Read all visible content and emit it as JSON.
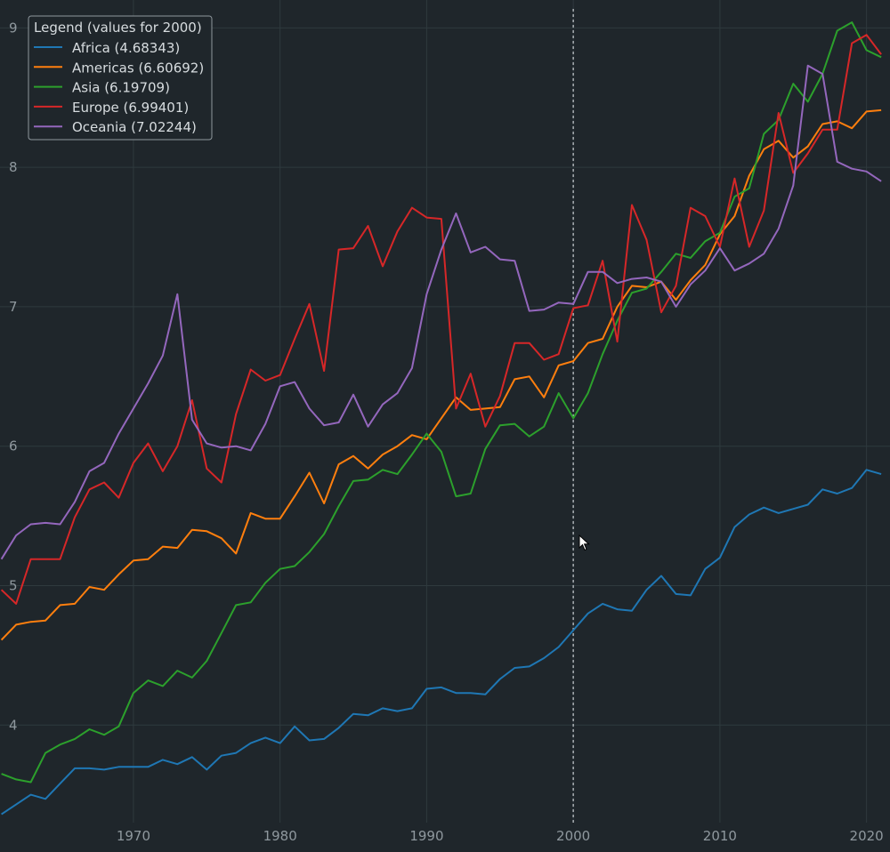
{
  "chart_data": {
    "type": "line",
    "title": "",
    "xlabel": "",
    "ylabel": "",
    "xlim": [
      1960.9,
      2021.6
    ],
    "ylim": [
      3.3,
      9.2
    ],
    "x_ticks": [
      1970,
      1980,
      1990,
      2000,
      2010,
      2020
    ],
    "y_ticks": [
      4,
      5,
      6,
      7,
      8,
      9
    ],
    "grid": true,
    "hover_x": 2000,
    "legend": {
      "title": "Legend (values for 2000)",
      "placement": "top-left"
    },
    "x": [
      1961,
      1962,
      1963,
      1964,
      1965,
      1966,
      1967,
      1968,
      1969,
      1970,
      1971,
      1972,
      1973,
      1974,
      1975,
      1976,
      1977,
      1978,
      1979,
      1980,
      1981,
      1982,
      1983,
      1984,
      1985,
      1986,
      1987,
      1988,
      1989,
      1990,
      1991,
      1992,
      1993,
      1994,
      1995,
      1996,
      1997,
      1998,
      1999,
      2000,
      2001,
      2002,
      2003,
      2004,
      2005,
      2006,
      2007,
      2008,
      2009,
      2010,
      2011,
      2012,
      2013,
      2014,
      2015,
      2016,
      2017,
      2018,
      2019,
      2020,
      2021
    ],
    "series": [
      {
        "name": "Africa",
        "legend_label": "Africa (4.68343)",
        "color": "#1f77b4",
        "values": [
          3.36,
          3.43,
          3.5,
          3.47,
          3.58,
          3.69,
          3.69,
          3.68,
          3.7,
          3.7,
          3.7,
          3.75,
          3.72,
          3.77,
          3.68,
          3.78,
          3.8,
          3.87,
          3.91,
          3.87,
          3.99,
          3.89,
          3.9,
          3.98,
          4.08,
          4.07,
          4.12,
          4.1,
          4.12,
          4.26,
          4.27,
          4.23,
          4.23,
          4.22,
          4.33,
          4.41,
          4.42,
          4.48,
          4.56,
          4.68,
          4.8,
          4.87,
          4.83,
          4.82,
          4.97,
          5.07,
          4.94,
          4.93,
          5.12,
          5.2,
          5.42,
          5.51,
          5.56,
          5.52,
          5.55,
          5.58,
          5.69,
          5.66,
          5.7,
          5.83,
          5.8
        ]
      },
      {
        "name": "Americas",
        "legend_label": "Americas (6.60692)",
        "color": "#ff7f0e",
        "values": [
          4.61,
          4.72,
          4.74,
          4.75,
          4.86,
          4.87,
          4.99,
          4.97,
          5.08,
          5.18,
          5.19,
          5.28,
          5.27,
          5.4,
          5.39,
          5.34,
          5.23,
          5.52,
          5.48,
          5.48,
          5.64,
          5.81,
          5.59,
          5.87,
          5.93,
          5.84,
          5.94,
          6.0,
          6.08,
          6.05,
          6.2,
          6.35,
          6.26,
          6.27,
          6.28,
          6.48,
          6.5,
          6.35,
          6.58,
          6.61,
          6.74,
          6.77,
          7.0,
          7.15,
          7.14,
          7.18,
          7.05,
          7.19,
          7.3,
          7.52,
          7.65,
          7.94,
          8.13,
          8.19,
          8.07,
          8.15,
          8.31,
          8.33,
          8.28,
          8.4,
          8.41
        ]
      },
      {
        "name": "Asia",
        "legend_label": "Asia (6.19709)",
        "color": "#2ca02c",
        "values": [
          3.65,
          3.61,
          3.59,
          3.8,
          3.86,
          3.9,
          3.97,
          3.93,
          3.99,
          4.23,
          4.32,
          4.28,
          4.39,
          4.34,
          4.46,
          4.66,
          4.86,
          4.88,
          5.02,
          5.12,
          5.14,
          5.24,
          5.37,
          5.57,
          5.75,
          5.76,
          5.83,
          5.8,
          5.94,
          6.09,
          5.96,
          5.64,
          5.66,
          5.98,
          6.15,
          6.16,
          6.07,
          6.14,
          6.38,
          6.2,
          6.38,
          6.66,
          6.9,
          7.1,
          7.13,
          7.25,
          7.38,
          7.35,
          7.47,
          7.53,
          7.79,
          7.85,
          8.24,
          8.34,
          8.6,
          8.47,
          8.67,
          8.98,
          9.04,
          8.84,
          8.79
        ]
      },
      {
        "name": "Europe",
        "legend_label": "Europe (6.99401)",
        "color": "#d62728",
        "values": [
          4.97,
          4.87,
          5.19,
          5.19,
          5.19,
          5.49,
          5.69,
          5.74,
          5.63,
          5.88,
          6.02,
          5.82,
          6.0,
          6.33,
          5.84,
          5.74,
          6.23,
          6.55,
          6.47,
          6.51,
          6.77,
          7.02,
          6.54,
          7.41,
          7.42,
          7.58,
          7.29,
          7.54,
          7.71,
          7.64,
          7.63,
          6.27,
          6.52,
          6.14,
          6.36,
          6.74,
          6.74,
          6.62,
          6.66,
          6.99,
          7.01,
          7.33,
          6.75,
          7.73,
          7.48,
          6.96,
          7.15,
          7.71,
          7.65,
          7.43,
          7.92,
          7.43,
          7.69,
          8.39,
          7.96,
          8.1,
          8.27,
          8.27,
          8.89,
          8.95,
          8.81
        ]
      },
      {
        "name": "Oceania",
        "legend_label": "Oceania (7.02244)",
        "color": "#9467bd",
        "values": [
          5.19,
          5.36,
          5.44,
          5.45,
          5.44,
          5.6,
          5.82,
          5.88,
          6.09,
          6.27,
          6.45,
          6.65,
          7.09,
          6.19,
          6.02,
          5.99,
          6.0,
          5.97,
          6.16,
          6.43,
          6.46,
          6.27,
          6.15,
          6.17,
          6.37,
          6.14,
          6.3,
          6.38,
          6.56,
          7.09,
          7.41,
          7.67,
          7.39,
          7.43,
          7.34,
          7.33,
          6.97,
          6.98,
          7.03,
          7.02,
          7.25,
          7.25,
          7.17,
          7.2,
          7.21,
          7.18,
          7.0,
          7.16,
          7.26,
          7.42,
          7.26,
          7.31,
          7.38,
          7.56,
          7.87,
          8.73,
          8.67,
          8.04,
          7.99,
          7.97,
          7.9
        ]
      }
    ]
  },
  "style": {
    "background": "#1f262b",
    "grid_color": "#2f3a3e",
    "tick_color": "#8f989e",
    "hover_line_color": "#aab0b4",
    "legend_bg": "#1f262b",
    "legend_border": "#8f989e",
    "legend_text": "#d7dcdf"
  }
}
